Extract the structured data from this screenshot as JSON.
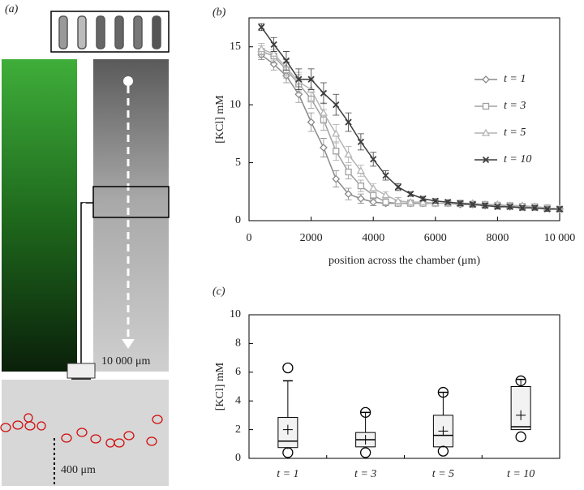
{
  "panel_a": {
    "label": "(a)",
    "scale_label": "10 000 μm",
    "distance_label": "400 μm"
  },
  "chart_data": [
    {
      "type": "line",
      "panel_label": "(b)",
      "xlabel": "position across the chamber (μm)",
      "ylabel": "[KCl] mM",
      "xlim": [
        0,
        10000
      ],
      "xticks": [
        0,
        2000,
        4000,
        6000,
        8000,
        {
          "value": 10000,
          "label": "10 000"
        }
      ],
      "ylim": [
        0,
        17.5
      ],
      "yticks": [
        0,
        5,
        10,
        15
      ],
      "legend": "right",
      "x": [
        400,
        800,
        1200,
        1600,
        2000,
        2400,
        2800,
        3200,
        3600,
        4000,
        4400,
        4800,
        5200,
        5600,
        6000,
        6400,
        6800,
        7200,
        7600,
        8000,
        8400,
        8800,
        9200,
        9600,
        10000
      ],
      "series": [
        {
          "name": "t = 1",
          "color": "#8a8a8a",
          "marker": "diamond",
          "values": [
            14.3,
            13.5,
            12.5,
            10.9,
            8.5,
            6.3,
            3.6,
            2.3,
            1.9,
            1.6,
            1.5,
            1.5,
            1.5,
            1.5,
            1.5,
            1.5,
            1.4,
            1.4,
            1.3,
            1.3,
            1.2,
            1.2,
            1.2,
            1.1,
            1.0
          ],
          "errors": [
            0.4,
            0.5,
            0.6,
            0.7,
            0.8,
            0.8,
            0.7,
            0.5,
            0.4,
            0.3,
            0.2,
            0.2,
            0.2,
            0.2,
            0.2,
            0.2,
            0.2,
            0.2,
            0.2,
            0.2,
            0.2,
            0.2,
            0.2,
            0.2,
            0.2
          ]
        },
        {
          "name": "t = 3",
          "color": "#a0a0a0",
          "marker": "square",
          "values": [
            14.6,
            14.2,
            13.0,
            11.8,
            10.5,
            8.7,
            6.0,
            4.2,
            3.0,
            2.2,
            1.6,
            1.5,
            1.5,
            1.5,
            1.5,
            1.5,
            1.5,
            1.4,
            1.4,
            1.3,
            1.3,
            1.2,
            1.2,
            1.1,
            1.0
          ],
          "errors": [
            0.5,
            0.6,
            0.7,
            0.8,
            0.8,
            0.9,
            0.8,
            0.6,
            0.5,
            0.4,
            0.3,
            0.2,
            0.2,
            0.2,
            0.2,
            0.2,
            0.2,
            0.2,
            0.2,
            0.2,
            0.2,
            0.2,
            0.2,
            0.2,
            0.2
          ]
        },
        {
          "name": "t = 5",
          "color": "#b4b4b4",
          "marker": "triangle",
          "values": [
            14.8,
            14.4,
            13.2,
            12.0,
            11.3,
            9.3,
            7.5,
            5.7,
            4.3,
            2.8,
            2.2,
            1.7,
            1.6,
            1.6,
            1.5,
            1.5,
            1.5,
            1.5,
            1.4,
            1.4,
            1.3,
            1.3,
            1.2,
            1.1,
            1.0
          ],
          "errors": [
            0.5,
            0.6,
            0.7,
            0.8,
            0.9,
            0.9,
            0.8,
            0.7,
            0.5,
            0.4,
            0.3,
            0.3,
            0.2,
            0.2,
            0.2,
            0.2,
            0.2,
            0.2,
            0.2,
            0.2,
            0.2,
            0.2,
            0.2,
            0.2,
            0.2
          ]
        },
        {
          "name": "t = 10",
          "color": "#3c3c3c",
          "marker": "x",
          "values": [
            16.7,
            15.2,
            13.8,
            12.2,
            12.2,
            11.0,
            10.0,
            8.5,
            6.8,
            5.3,
            3.9,
            2.9,
            2.3,
            1.9,
            1.7,
            1.6,
            1.5,
            1.4,
            1.3,
            1.2,
            1.2,
            1.1,
            1.1,
            1.0,
            1.0
          ],
          "errors": [
            0.3,
            0.6,
            0.8,
            0.9,
            0.9,
            0.9,
            0.9,
            0.8,
            0.7,
            0.6,
            0.4,
            0.3,
            0.2,
            0.2,
            0.2,
            0.2,
            0.2,
            0.2,
            0.2,
            0.2,
            0.2,
            0.2,
            0.2,
            0.2,
            0.2
          ]
        }
      ]
    },
    {
      "type": "box",
      "panel_label": "(c)",
      "ylabel": "[KCl] mM",
      "ylim": [
        0,
        10
      ],
      "yticks": [
        0,
        2,
        4,
        6,
        8,
        10
      ],
      "color": "#f2f2f2",
      "categories": [
        "t = 1",
        "t = 3",
        "t = 5",
        "t = 10"
      ],
      "boxes": [
        {
          "whisker_low": 0.65,
          "q1": 0.75,
          "median": 1.2,
          "q3": 2.85,
          "whisker_high": 5.4,
          "mean": 2.0,
          "outliers": [
            6.3,
            0.4
          ]
        },
        {
          "whisker_low": 0.8,
          "q1": 0.8,
          "median": 1.3,
          "q3": 1.8,
          "whisker_high": 3.2,
          "mean": 1.3,
          "outliers": [
            3.2,
            0.4
          ]
        },
        {
          "whisker_low": 0.8,
          "q1": 0.8,
          "median": 1.6,
          "q3": 3.0,
          "whisker_high": 4.6,
          "mean": 1.9,
          "outliers": [
            4.6,
            0.5
          ]
        },
        {
          "whisker_low": 2.0,
          "q1": 2.0,
          "median": 2.2,
          "q3": 5.0,
          "whisker_high": 5.5,
          "mean": 3.0,
          "outliers": [
            5.4,
            1.5
          ]
        }
      ]
    }
  ]
}
